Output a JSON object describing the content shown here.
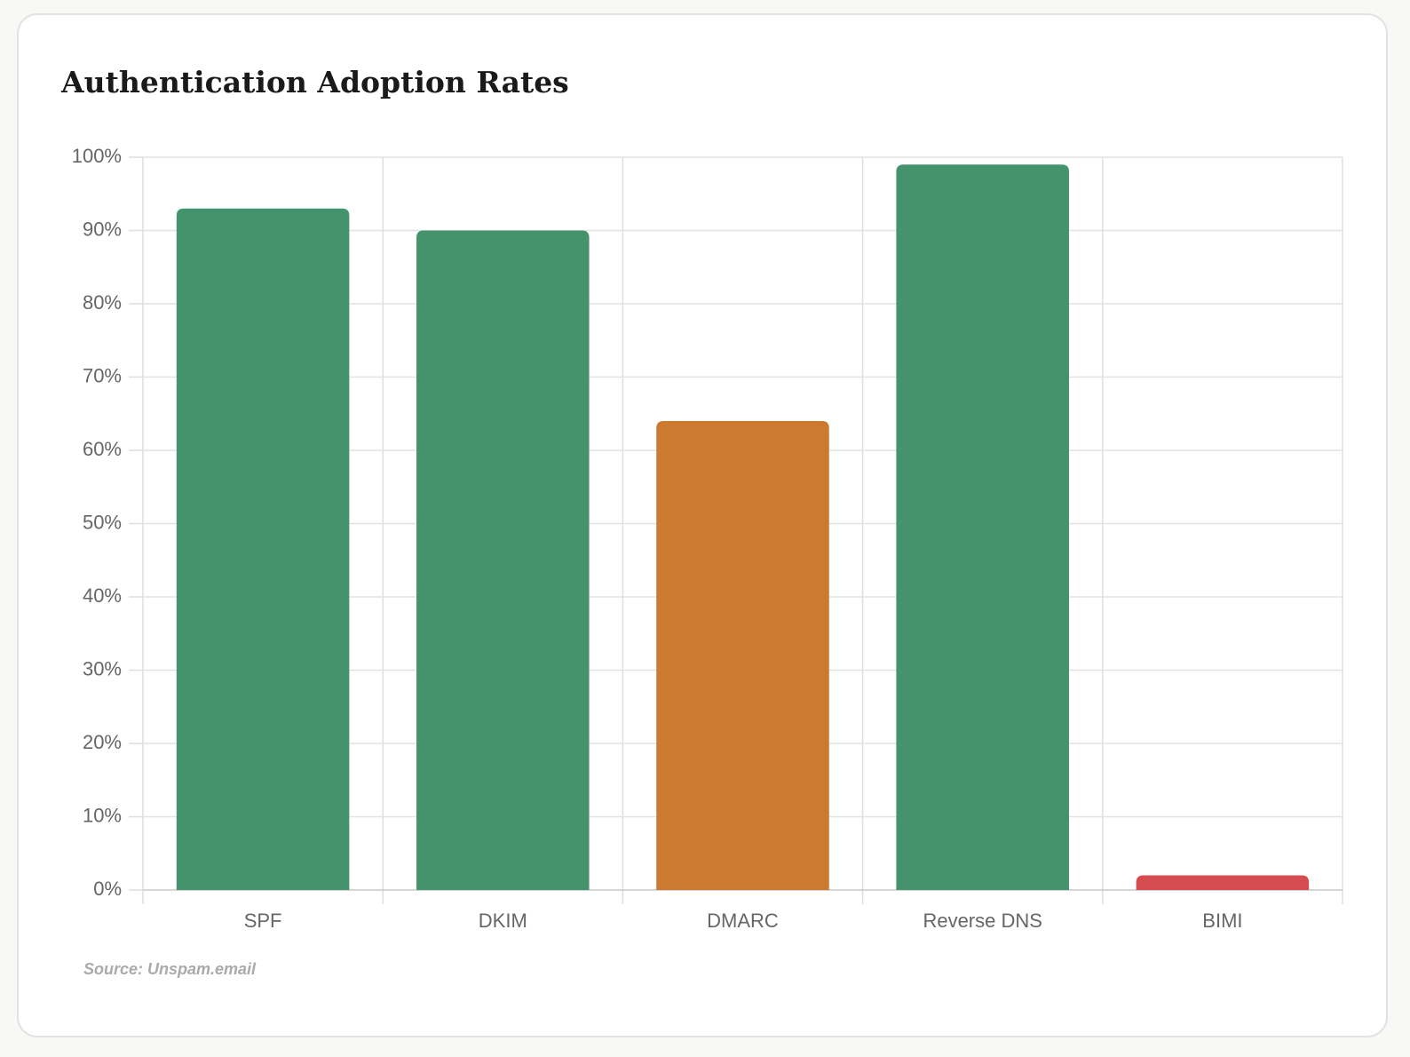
{
  "chart_data": {
    "type": "bar",
    "title": "Authentication Adoption Rates",
    "categories": [
      "SPF",
      "DKIM",
      "DMARC",
      "Reverse DNS",
      "BIMI"
    ],
    "values": [
      93,
      90,
      64,
      99,
      2
    ],
    "colors": [
      "#44936d",
      "#44936d",
      "#cb7a2f",
      "#44936d",
      "#d64b50"
    ],
    "ylim": [
      0,
      100
    ],
    "yticks": [
      {
        "value": 0,
        "label": "0%"
      },
      {
        "value": 10,
        "label": "10%"
      },
      {
        "value": 20,
        "label": "20%"
      },
      {
        "value": 30,
        "label": "30%"
      },
      {
        "value": 40,
        "label": "40%"
      },
      {
        "value": 50,
        "label": "50%"
      },
      {
        "value": 60,
        "label": "60%"
      },
      {
        "value": 70,
        "label": "70%"
      },
      {
        "value": 80,
        "label": "80%"
      },
      {
        "value": 90,
        "label": "90%"
      },
      {
        "value": 100,
        "label": "100%"
      }
    ],
    "grid": true,
    "source": "Source: Unspam.email"
  }
}
